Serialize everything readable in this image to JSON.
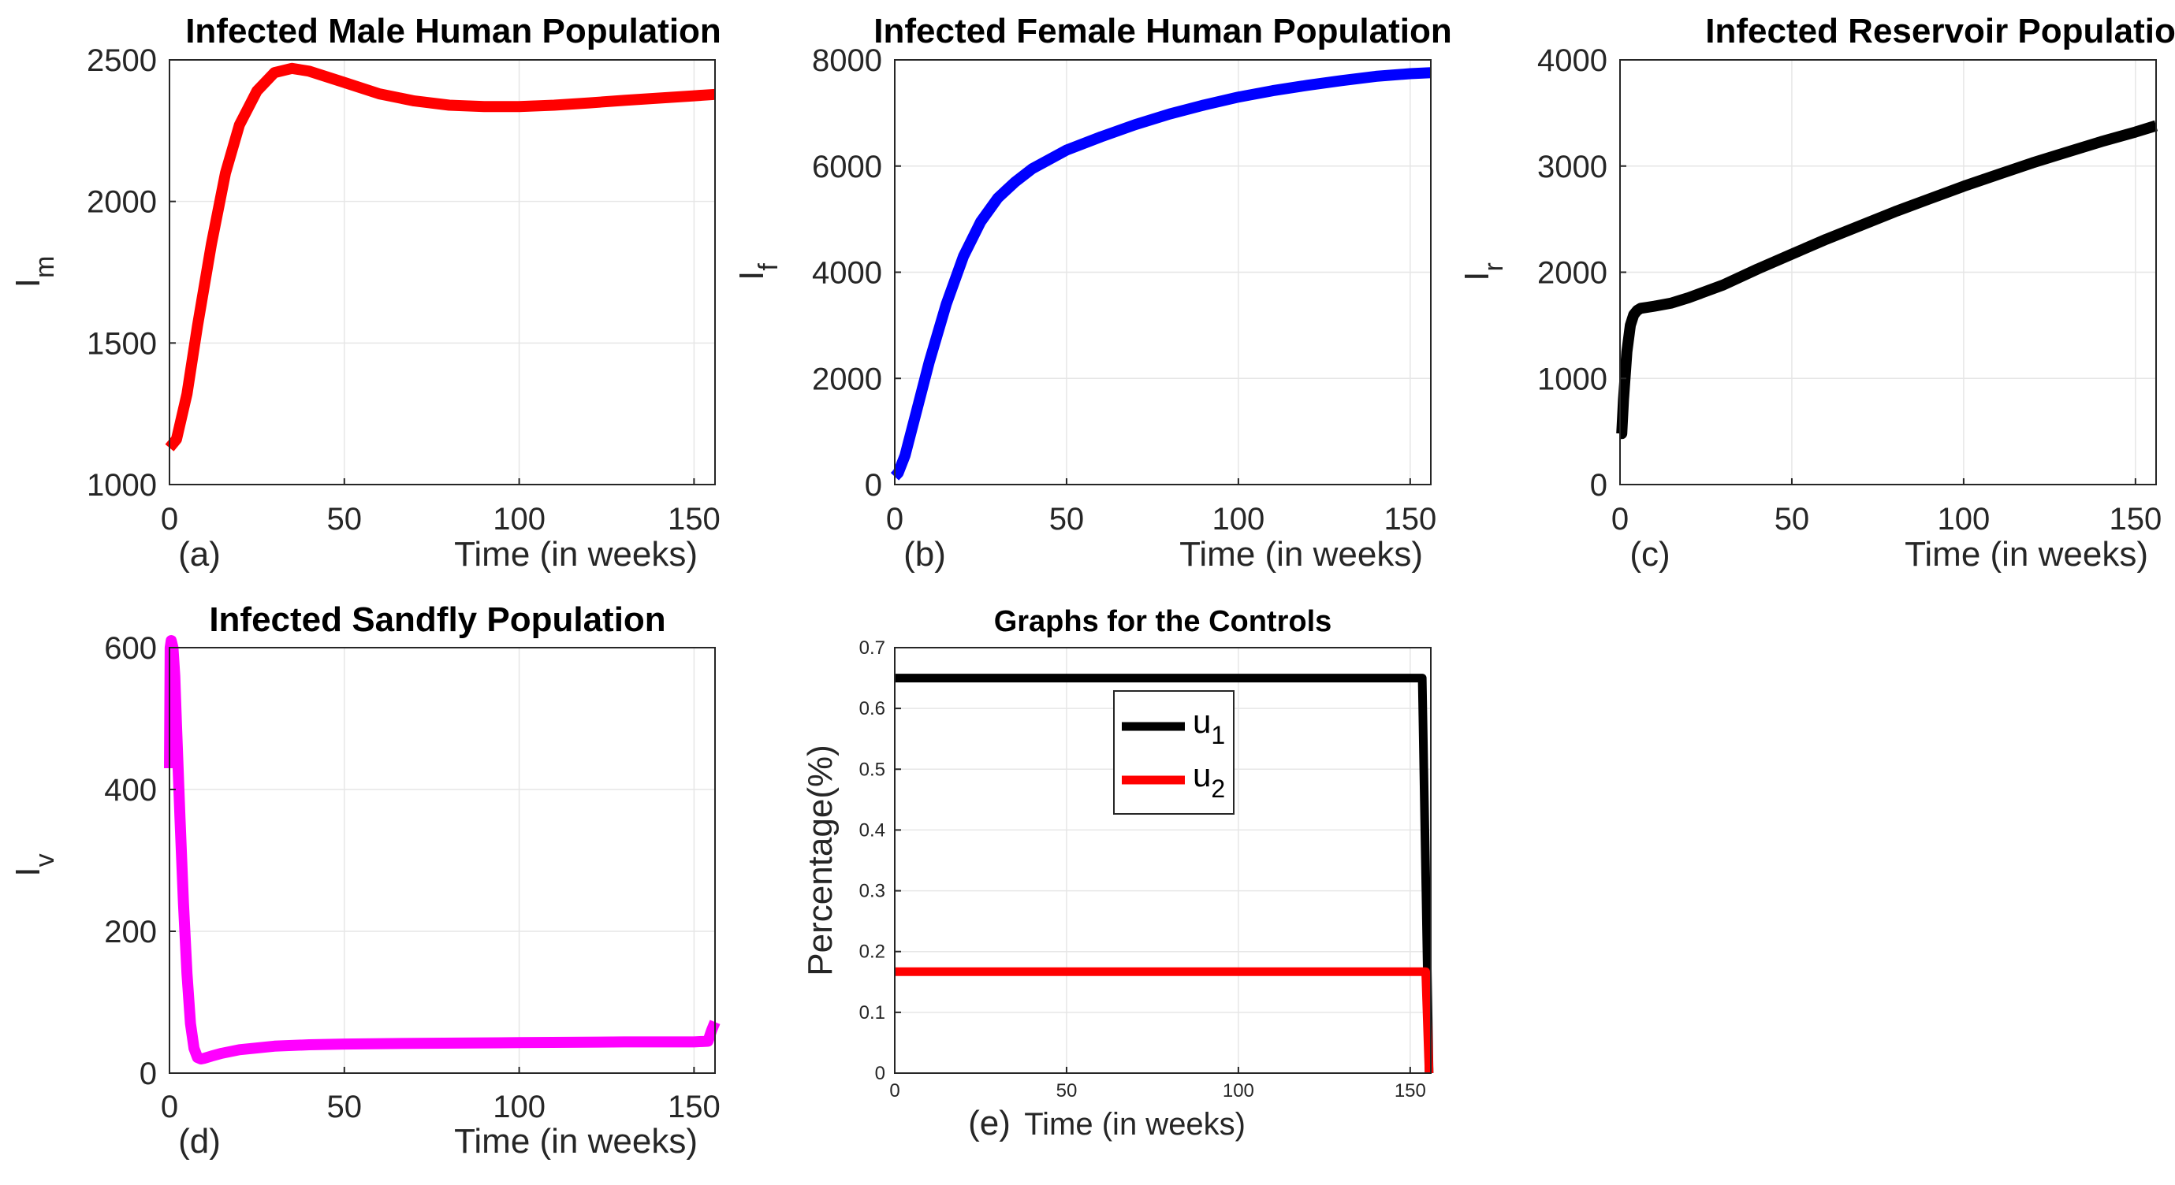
{
  "chart_data": [
    {
      "type": "line",
      "title": "Infected Male Human Population",
      "xlabel": "Time (in weeks)",
      "ylabel": "I",
      "ylabel_sub": "m",
      "panel_label": "(a)",
      "xlim": [
        0,
        156
      ],
      "ylim": [
        1000,
        2500
      ],
      "xticks": [
        0,
        50,
        100,
        150
      ],
      "yticks": [
        1000,
        1500,
        2000,
        2500
      ],
      "grid": true,
      "series": [
        {
          "color": "#ff0000",
          "x": [
            0,
            2,
            5,
            8,
            12,
            16,
            20,
            25,
            30,
            35,
            40,
            50,
            60,
            70,
            80,
            90,
            100,
            110,
            120,
            130,
            140,
            150,
            156
          ],
          "y": [
            1130,
            1160,
            1320,
            1560,
            1850,
            2100,
            2270,
            2390,
            2455,
            2470,
            2460,
            2420,
            2380,
            2355,
            2340,
            2335,
            2335,
            2340,
            2348,
            2357,
            2365,
            2373,
            2378
          ]
        }
      ]
    },
    {
      "type": "line",
      "title": "Infected Female Human Population",
      "xlabel": "Time (in weeks)",
      "ylabel": "I",
      "ylabel_sub": "f",
      "panel_label": "(b)",
      "xlim": [
        0,
        156
      ],
      "ylim": [
        0,
        8000
      ],
      "xticks": [
        0,
        50,
        100,
        150
      ],
      "yticks": [
        0,
        2000,
        4000,
        6000,
        8000
      ],
      "grid": true,
      "series": [
        {
          "color": "#0000ff",
          "x": [
            0,
            1,
            3,
            6,
            10,
            15,
            20,
            25,
            30,
            35,
            40,
            50,
            60,
            70,
            80,
            90,
            100,
            110,
            120,
            130,
            140,
            150,
            156
          ],
          "y": [
            150,
            220,
            550,
            1300,
            2300,
            3400,
            4300,
            4950,
            5400,
            5700,
            5950,
            6300,
            6550,
            6780,
            6980,
            7150,
            7300,
            7420,
            7520,
            7610,
            7690,
            7740,
            7760
          ]
        }
      ]
    },
    {
      "type": "line",
      "title": "Infected Reservoir Population",
      "xlabel": "Time (in weeks)",
      "ylabel": "I",
      "ylabel_sub": "r",
      "panel_label": "(c)",
      "xlim": [
        0,
        156
      ],
      "ylim": [
        0,
        4000
      ],
      "xticks": [
        0,
        50,
        100,
        150
      ],
      "yticks": [
        0,
        1000,
        2000,
        3000,
        4000
      ],
      "grid": true,
      "series": [
        {
          "color": "#000000",
          "x": [
            0,
            0.5,
            1,
            2,
            3,
            4,
            5,
            6,
            8,
            10,
            15,
            20,
            30,
            40,
            50,
            60,
            70,
            80,
            90,
            100,
            110,
            120,
            130,
            140,
            150,
            156
          ],
          "y": [
            480,
            480,
            800,
            1250,
            1500,
            1600,
            1640,
            1660,
            1670,
            1680,
            1710,
            1760,
            1880,
            2030,
            2170,
            2310,
            2440,
            2570,
            2690,
            2810,
            2920,
            3030,
            3130,
            3230,
            3320,
            3380
          ]
        }
      ]
    },
    {
      "type": "line",
      "title": "Infected Sandfly Population",
      "xlabel": "Time (in weeks)",
      "ylabel": "I",
      "ylabel_sub": "v",
      "panel_label": "(d)",
      "xlim": [
        0,
        156
      ],
      "ylim": [
        0,
        600
      ],
      "xticks": [
        0,
        50,
        100,
        150
      ],
      "yticks": [
        0,
        200,
        400,
        600
      ],
      "grid": true,
      "series": [
        {
          "color": "#ff00ff",
          "x": [
            0,
            0.2,
            0.5,
            1,
            1.5,
            2,
            3,
            4,
            5,
            6,
            7,
            8,
            9,
            10,
            12,
            15,
            20,
            30,
            40,
            50,
            70,
            100,
            130,
            150,
            154,
            155,
            156
          ],
          "y": [
            430,
            600,
            610,
            600,
            560,
            490,
            360,
            240,
            140,
            70,
            35,
            22,
            20,
            21,
            24,
            28,
            33,
            38,
            40,
            41,
            42,
            43,
            44,
            44,
            45,
            60,
            72
          ]
        }
      ]
    },
    {
      "type": "line",
      "title": "Graphs for the Controls",
      "xlabel": "Time (in weeks)",
      "ylabel": "Percentage(%)",
      "panel_label": "(e)",
      "xlim": [
        0,
        156
      ],
      "ylim": [
        0,
        0.7
      ],
      "xticks": [
        0,
        50,
        100,
        150
      ],
      "yticks": [
        0,
        0.1,
        0.2,
        0.3,
        0.4,
        0.5,
        0.6,
        0.7
      ],
      "grid": true,
      "legend": "top-center",
      "series": [
        {
          "name": "u",
          "name_sub": "1",
          "color": "#000000",
          "x": [
            0,
            153.5,
            155.5
          ],
          "y": [
            0.65,
            0.65,
            0
          ]
        },
        {
          "name": "u",
          "name_sub": "2",
          "color": "#ff0000",
          "x": [
            0,
            154.5,
            155.5
          ],
          "y": [
            0.167,
            0.167,
            0
          ]
        }
      ]
    }
  ]
}
